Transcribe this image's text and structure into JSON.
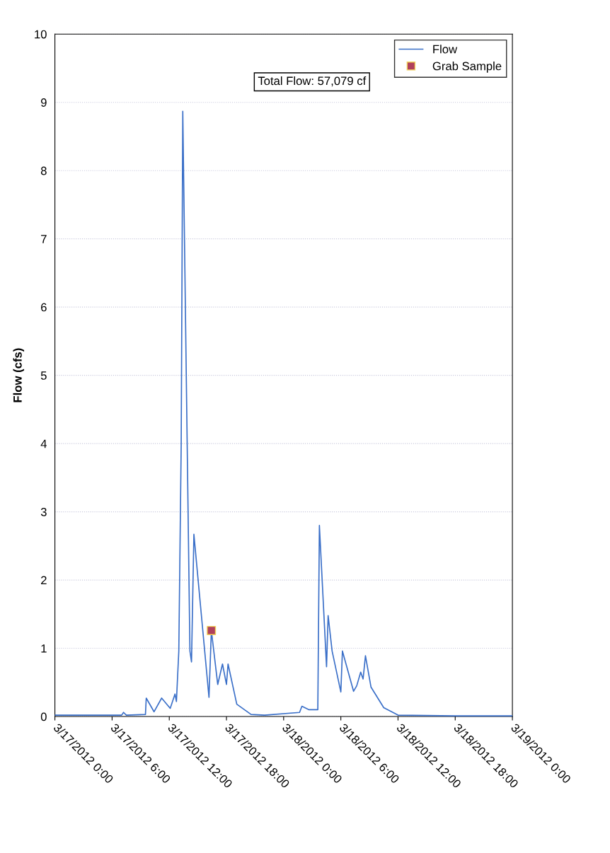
{
  "chart_data": {
    "type": "line",
    "ylabel": "Flow (cfs)",
    "annotations": [
      "Total Flow: 57,079 cf"
    ],
    "xlim": [
      "2012-03-17T00:00",
      "2012-03-19T00:00"
    ],
    "xticks": [
      {
        "value": "2012-03-17T00:00",
        "label": "3/17/2012 0:00"
      },
      {
        "value": "2012-03-17T06:00",
        "label": "3/17/2012 6:00"
      },
      {
        "value": "2012-03-17T12:00",
        "label": "3/17/2012 12:00"
      },
      {
        "value": "2012-03-17T18:00",
        "label": "3/17/2012 18:00"
      },
      {
        "value": "2012-03-18T00:00",
        "label": "3/18/2012 0:00"
      },
      {
        "value": "2012-03-18T06:00",
        "label": "3/18/2012 6:00"
      },
      {
        "value": "2012-03-18T12:00",
        "label": "3/18/2012 12:00"
      },
      {
        "value": "2012-03-18T18:00",
        "label": "3/18/2012 18:00"
      },
      {
        "value": "2012-03-19T00:00",
        "label": "3/19/2012 0:00"
      }
    ],
    "ylim": [
      0,
      10
    ],
    "yticks": [
      0,
      1,
      2,
      3,
      4,
      5,
      6,
      7,
      8,
      9,
      10
    ],
    "grid": "y",
    "legend": "top right",
    "series": [
      {
        "name": "Flow",
        "color": "#3a6fc8",
        "marker": "none",
        "x": [
          "2012-03-17T00:00",
          "2012-03-17T06:00",
          "2012-03-17T07:00",
          "2012-03-17T07:12",
          "2012-03-17T07:30",
          "2012-03-17T09:30",
          "2012-03-17T09:35",
          "2012-03-17T10:24",
          "2012-03-17T11:12",
          "2012-03-17T12:06",
          "2012-03-17T12:36",
          "2012-03-17T12:45",
          "2012-03-17T13:00",
          "2012-03-17T13:15",
          "2012-03-17T13:25",
          "2012-03-17T14:10",
          "2012-03-17T14:20",
          "2012-03-17T14:35",
          "2012-03-17T16:10",
          "2012-03-17T16:25",
          "2012-03-17T17:05",
          "2012-03-17T17:35",
          "2012-03-17T18:00",
          "2012-03-17T18:10",
          "2012-03-17T19:05",
          "2012-03-17T20:35",
          "2012-03-17T22:00",
          "2012-03-18T01:40",
          "2012-03-18T01:55",
          "2012-03-18T02:40",
          "2012-03-18T03:35",
          "2012-03-18T03:45",
          "2012-03-18T04:30",
          "2012-03-18T04:40",
          "2012-03-18T05:05",
          "2012-03-18T06:00",
          "2012-03-18T06:10",
          "2012-03-18T07:20",
          "2012-03-18T07:40",
          "2012-03-18T08:05",
          "2012-03-18T08:20",
          "2012-03-18T08:35",
          "2012-03-18T09:10",
          "2012-03-18T10:30",
          "2012-03-18T12:00",
          "2012-03-18T18:00",
          "2012-03-19T00:00"
        ],
        "values": [
          0.02,
          0.02,
          0.02,
          0.06,
          0.02,
          0.03,
          0.27,
          0.07,
          0.27,
          0.12,
          0.33,
          0.22,
          0.96,
          3.98,
          8.87,
          0.96,
          0.8,
          2.67,
          0.28,
          1.26,
          0.47,
          0.77,
          0.47,
          0.77,
          0.18,
          0.03,
          0.02,
          0.06,
          0.15,
          0.1,
          0.1,
          2.8,
          0.73,
          1.48,
          0.96,
          0.36,
          0.96,
          0.37,
          0.45,
          0.65,
          0.55,
          0.89,
          0.43,
          0.13,
          0.02,
          0.01,
          0.01
        ]
      },
      {
        "name": "Grab Sample",
        "type": "scatter",
        "color": "#b0405c",
        "marker": "square",
        "x": [
          "2012-03-17T16:25"
        ],
        "values": [
          1.26
        ]
      }
    ]
  }
}
